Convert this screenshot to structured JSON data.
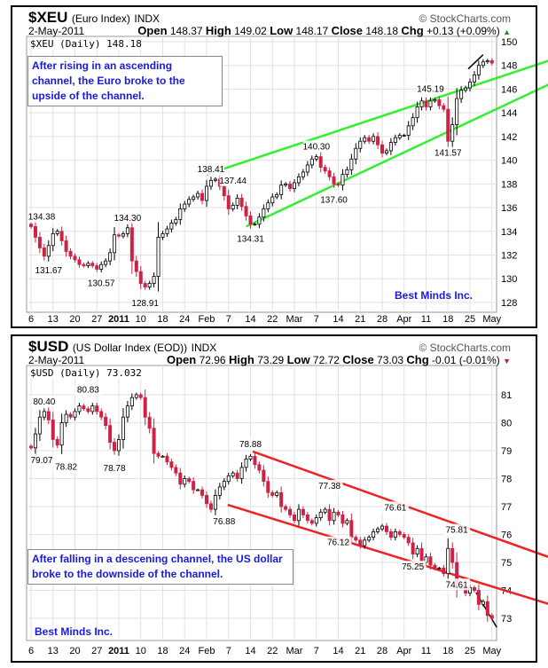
{
  "charts": [
    {
      "symbol": "$XEU",
      "name": "(Euro Index)",
      "exchange": "INDX",
      "brand": "© StockCharts.com",
      "date": "2-May-2011",
      "quote": {
        "open_label": "Open",
        "open": "148.37",
        "high_label": "High",
        "high": "149.02",
        "low_label": "Low",
        "low": "148.17",
        "close_label": "Close",
        "close": "148.18",
        "chg_label": "Chg",
        "chg": "+0.13 (+0.09%)",
        "chg_icon": "▲"
      },
      "legend": "$XEU (Daily) 148.18",
      "note": "After rising in an ascending channel, the Euro broke to the upside of the channel.",
      "credit": "Best Minds Inc."
    },
    {
      "symbol": "$USD",
      "name": "(US Dollar Index (EOD))",
      "exchange": "INDX",
      "brand": "© StockCharts.com",
      "date": "2-May-2011",
      "quote": {
        "open_label": "Open",
        "open": "72.96",
        "high_label": "High",
        "high": "73.29",
        "low_label": "Low",
        "low": "72.72",
        "close_label": "Close",
        "close": "73.03",
        "chg_label": "Chg",
        "chg": "-0.01 (-0.01%)",
        "chg_icon": "▼"
      },
      "legend": "$USD (Daily) 73.032",
      "note": "After falling in a descening channel, the US dollar broke to the downside of the channel.",
      "credit": "Best Minds Inc."
    }
  ],
  "chart_data": [
    {
      "type": "candlestick",
      "title": "$XEU (Euro Index)",
      "ylim": [
        127,
        151
      ],
      "yticks": [
        128,
        130,
        132,
        134,
        136,
        138,
        140,
        142,
        144,
        146,
        148,
        150
      ],
      "xticks": [
        {
          "i": 0,
          "label": "6"
        },
        {
          "i": 5,
          "label": "13"
        },
        {
          "i": 10,
          "label": "20"
        },
        {
          "i": 15,
          "label": "27"
        },
        {
          "i": 20,
          "label": "2011"
        },
        {
          "i": 25,
          "label": "10"
        },
        {
          "i": 30,
          "label": "18"
        },
        {
          "i": 35,
          "label": "24"
        },
        {
          "i": 40,
          "label": "Feb"
        },
        {
          "i": 45,
          "label": "7"
        },
        {
          "i": 50,
          "label": "14"
        },
        {
          "i": 55,
          "label": "22"
        },
        {
          "i": 60,
          "label": "Mar"
        },
        {
          "i": 65,
          "label": "7"
        },
        {
          "i": 70,
          "label": "14"
        },
        {
          "i": 75,
          "label": "21"
        },
        {
          "i": 80,
          "label": "28"
        },
        {
          "i": 85,
          "label": "Apr"
        },
        {
          "i": 90,
          "label": "11"
        },
        {
          "i": 95,
          "label": "18"
        },
        {
          "i": 100,
          "label": "25"
        },
        {
          "i": 105,
          "label": "May"
        }
      ],
      "closes": [
        134.4,
        133.5,
        132.6,
        131.9,
        132.8,
        133.8,
        134.0,
        133.2,
        132.3,
        131.9,
        131.6,
        131.2,
        131.1,
        131.3,
        131.1,
        130.8,
        131.2,
        131.5,
        132.2,
        133.7,
        133.6,
        133.8,
        134.3,
        131.5,
        130.6,
        129.6,
        129.3,
        129.6,
        130.2,
        133.5,
        133.8,
        134.2,
        134.7,
        135.0,
        135.9,
        136.3,
        136.7,
        136.9,
        137.2,
        136.6,
        137.8,
        138.3,
        138.4,
        137.8,
        137.0,
        135.9,
        136.2,
        136.8,
        136.1,
        135.3,
        134.6,
        134.6,
        135.2,
        135.9,
        136.4,
        136.9,
        137.1,
        137.9,
        138.0,
        137.6,
        138.1,
        138.6,
        139.0,
        139.6,
        140.1,
        140.3,
        139.4,
        139.1,
        138.6,
        138.0,
        137.9,
        138.8,
        139.2,
        140.1,
        141.0,
        141.6,
        141.9,
        141.6,
        142.0,
        141.3,
        140.6,
        140.8,
        141.5,
        141.9,
        142.1,
        142.1,
        142.9,
        143.6,
        144.5,
        145.0,
        144.5,
        145.0,
        145.1,
        144.6,
        144.3,
        141.6,
        143.0,
        145.2,
        145.9,
        146.1,
        146.6,
        147.2,
        148.0,
        148.3,
        148.4,
        148.2
      ],
      "annotations": [
        {
          "i": 0,
          "v": "134.38",
          "pos": "above"
        },
        {
          "i": 4,
          "v": "131.67",
          "pos": "below"
        },
        {
          "i": 16,
          "v": "130.57",
          "pos": "below"
        },
        {
          "i": 22,
          "v": "134.30",
          "pos": "above"
        },
        {
          "i": 26,
          "v": "128.91",
          "pos": "below"
        },
        {
          "i": 41,
          "v": "138.41",
          "pos": "above"
        },
        {
          "i": 46,
          "v": "137.44",
          "pos": "above"
        },
        {
          "i": 50,
          "v": "134.31",
          "pos": "below"
        },
        {
          "i": 65,
          "v": "140.30",
          "pos": "above"
        },
        {
          "i": 69,
          "v": "137.60",
          "pos": "below"
        },
        {
          "i": 91,
          "v": "145.19",
          "pos": "above"
        },
        {
          "i": 95,
          "v": "141.57",
          "pos": "below"
        }
      ],
      "trendlines": [
        {
          "color": "#33ee33",
          "from": [
            40,
            138.8
          ],
          "to": [
            118,
            148.4
          ]
        },
        {
          "color": "#33ee33",
          "from": [
            49,
            134.4
          ],
          "to": [
            118,
            146.4
          ]
        },
        {
          "color": "#000000",
          "from": [
            99.6,
            147.7
          ],
          "to": [
            103,
            148.9
          ]
        }
      ]
    },
    {
      "type": "candlestick",
      "title": "$USD (US Dollar Index (EOD))",
      "ylim": [
        72.3,
        82.0
      ],
      "yticks": [
        73,
        74,
        75,
        76,
        77,
        78,
        79,
        80,
        81
      ],
      "xticks": [
        {
          "i": 0,
          "label": "6"
        },
        {
          "i": 5,
          "label": "13"
        },
        {
          "i": 10,
          "label": "20"
        },
        {
          "i": 15,
          "label": "27"
        },
        {
          "i": 20,
          "label": "2011"
        },
        {
          "i": 25,
          "label": "10"
        },
        {
          "i": 30,
          "label": "18"
        },
        {
          "i": 35,
          "label": "24"
        },
        {
          "i": 40,
          "label": "Feb"
        },
        {
          "i": 45,
          "label": "7"
        },
        {
          "i": 50,
          "label": "14"
        },
        {
          "i": 55,
          "label": "22"
        },
        {
          "i": 60,
          "label": "Mar"
        },
        {
          "i": 65,
          "label": "7"
        },
        {
          "i": 70,
          "label": "14"
        },
        {
          "i": 75,
          "label": "21"
        },
        {
          "i": 80,
          "label": "28"
        },
        {
          "i": 85,
          "label": "Apr"
        },
        {
          "i": 90,
          "label": "11"
        },
        {
          "i": 95,
          "label": "18"
        },
        {
          "i": 100,
          "label": "25"
        },
        {
          "i": 105,
          "label": "May"
        }
      ],
      "closes": [
        79.1,
        79.6,
        80.2,
        80.4,
        80.1,
        79.4,
        79.2,
        80.0,
        80.3,
        80.2,
        80.4,
        80.6,
        80.5,
        80.4,
        80.6,
        80.4,
        80.2,
        79.9,
        79.3,
        79.0,
        79.4,
        80.2,
        80.6,
        80.9,
        81.0,
        80.9,
        80.2,
        79.8,
        78.9,
        78.8,
        78.8,
        78.6,
        78.4,
        78.2,
        77.8,
        78.0,
        77.9,
        77.6,
        77.6,
        77.4,
        77.1,
        76.9,
        77.4,
        77.7,
        77.9,
        78.1,
        78.2,
        78.0,
        78.4,
        78.7,
        78.8,
        78.5,
        78.3,
        77.9,
        77.5,
        77.4,
        77.5,
        77.0,
        76.9,
        76.7,
        76.5,
        76.9,
        76.7,
        76.5,
        76.4,
        76.6,
        76.8,
        76.9,
        76.5,
        76.8,
        76.7,
        76.4,
        76.5,
        75.9,
        75.8,
        75.6,
        75.8,
        75.9,
        76.1,
        76.2,
        76.3,
        76.1,
        75.9,
        76.1,
        76.0,
        75.9,
        75.7,
        75.3,
        75.5,
        75.0,
        75.2,
        74.9,
        74.8,
        74.8,
        74.6,
        75.5,
        75.0,
        74.1,
        74.1,
        73.9,
        74.1,
        74.0,
        73.5,
        73.6,
        73.1,
        73.0
      ],
      "annotations": [
        {
          "i": 0,
          "v": "79.07",
          "pos": "below"
        },
        {
          "i": 3,
          "v": "80.40",
          "pos": "above"
        },
        {
          "i": 8,
          "v": "78.82",
          "pos": "below"
        },
        {
          "i": 13,
          "v": "80.83",
          "pos": "above"
        },
        {
          "i": 19,
          "v": "78.78",
          "pos": "below"
        },
        {
          "i": 44,
          "v": "76.88",
          "pos": "below"
        },
        {
          "i": 50,
          "v": "78.88",
          "pos": "above"
        },
        {
          "i": 68,
          "v": "77.38",
          "pos": "above"
        },
        {
          "i": 70,
          "v": "76.12",
          "pos": "below"
        },
        {
          "i": 83,
          "v": "76.61",
          "pos": "above"
        },
        {
          "i": 87,
          "v": "75.25",
          "pos": "below"
        },
        {
          "i": 97,
          "v": "75.81",
          "pos": "above"
        },
        {
          "i": 97,
          "v": "74.61",
          "pos": "below"
        }
      ],
      "trendlines": [
        {
          "color": "#ee2222",
          "from": [
            50.5,
            78.97
          ],
          "to": [
            118,
            75.19
          ]
        },
        {
          "color": "#ee2222",
          "from": [
            44.8,
            77.06
          ],
          "to": [
            118,
            73.51
          ]
        },
        {
          "color": "#000000",
          "from": [
            101.4,
            73.92
          ],
          "to": [
            106.1,
            72.68
          ]
        }
      ]
    }
  ]
}
